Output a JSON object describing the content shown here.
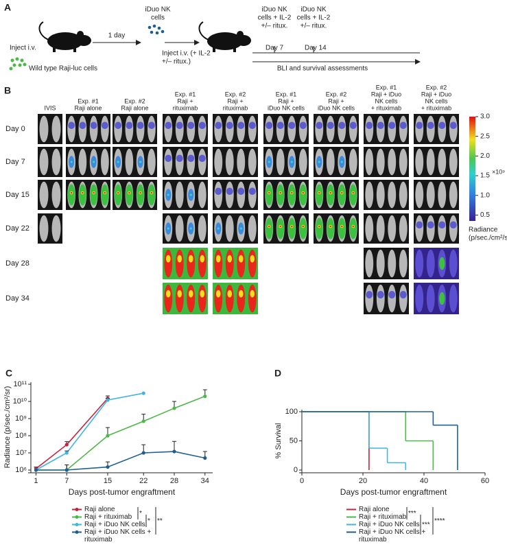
{
  "panel_a": {
    "label": "A",
    "inject_label": "Inject i.v.",
    "cells_label": "Wild type Raji-luc cells",
    "interval_label": "1 day",
    "nk_label": [
      "iDuo NK",
      "cells"
    ],
    "nk_inject_label": [
      "Inject i.v. (+ IL-2",
      "+/– ritux.)"
    ],
    "doses": [
      {
        "label": [
          "iDuo NK",
          "cells + IL-2",
          "+/– ritux."
        ],
        "day": "Day 7"
      },
      {
        "label": [
          "iDuo NK",
          "cells + IL-2",
          "+/– ritux."
        ],
        "day": "Day 14"
      }
    ],
    "assessment_label": "BLI and survival assessments"
  },
  "panel_b": {
    "label": "B",
    "columns": [
      [
        "IVIS"
      ],
      [
        "Exp. #1",
        "Raji alone"
      ],
      [
        "Exp. #2",
        "Raji alone"
      ],
      [
        "Exp. #1",
        "Raji +",
        "rituximab"
      ],
      [
        "Exp. #2",
        "Raji +",
        "rituximab"
      ],
      [
        "Exp. #1",
        "Raji +",
        "iDuo NK cells"
      ],
      [
        "Exp. #2",
        "Raji +",
        "iDuo NK cells"
      ],
      [
        "Exp. #1",
        "Raji + iDuo",
        "NK cells",
        "+ rituximab"
      ],
      [
        "Exp. #2",
        "Raji + iDuo",
        "NK cells",
        "+ rituximab"
      ]
    ],
    "rows": [
      "Day 0",
      "Day 7",
      "Day 15",
      "Day 22",
      "Day 28",
      "Day 34"
    ],
    "colorbar": {
      "range": [
        0.35,
        3
      ],
      "ticks": [
        {
          "value": 3,
          "label": "3.0"
        },
        2.5,
        {
          "value": 2,
          "label": "2.0"
        },
        1.5,
        {
          "value": 1,
          "label": "1.0"
        },
        0.5
      ],
      "exponent_label": "×10⁹",
      "title": [
        "Radiance",
        "(p/sec./cm²/sr)"
      ]
    }
  },
  "chart_data": [
    {
      "type": "line",
      "label": "C",
      "x_label": "Days post-tumor engraftment",
      "y_label": "Radiance (p/sec./cm²/sr)",
      "log_y": true,
      "x": [
        1,
        7,
        15,
        22,
        28,
        34
      ],
      "xlim": [
        0,
        35.5
      ],
      "xticks": [
        1,
        7,
        15,
        22,
        28,
        34
      ],
      "ylim": [
        1000000,
        100000000000
      ],
      "yticks": [
        {
          "value": 1000000,
          "label": "10⁶"
        },
        {
          "value": 10000000,
          "label": "10⁷"
        },
        {
          "value": 100000000,
          "label": "10⁸"
        },
        {
          "value": 1000000000,
          "label": "10⁹"
        },
        {
          "value": 10000000000,
          "label": "10¹⁰"
        },
        {
          "value": 100000000000,
          "label": "10¹¹"
        }
      ],
      "series": [
        {
          "name": "Raji alone",
          "color": "#c8203c",
          "values": [
            1200000,
            30000000,
            15000000000,
            null,
            null,
            null
          ],
          "errors": [
            300000,
            15000000,
            6000000000,
            null,
            null,
            null
          ]
        },
        {
          "name": "Raji + rituximab",
          "color": "#4cb848",
          "values": [
            1000000,
            1000000,
            100000000,
            700000000,
            4000000000,
            20000000000
          ],
          "errors": [
            null,
            1000000,
            200000000,
            1100000000,
            6000000000,
            28000000000
          ]
        },
        {
          "name": "Raji + iDuo NK cells",
          "color": "#3fb5e5",
          "values": [
            1000000,
            10000000,
            12000000000,
            30000000000,
            null,
            null
          ],
          "errors": [
            null,
            3000000,
            3000000000,
            null,
            null,
            null
          ]
        },
        {
          "name": "Raji + iDuo NK cells + rituximab",
          "color": "#1f5f8f",
          "values": [
            1000000,
            1000000,
            1500000,
            10000000,
            12000000,
            5000000
          ],
          "errors": [
            null,
            1000000,
            1500000,
            20000000,
            35000000,
            7000000
          ]
        }
      ],
      "annotations": [
        "*",
        "*",
        "**"
      ]
    },
    {
      "type": "step",
      "label": "D",
      "x_label": "Days post-tumor engraftment",
      "y_label": "% Survival",
      "xlim": [
        0,
        60
      ],
      "xticks": [
        0,
        20,
        40,
        60
      ],
      "ylim": [
        0,
        100
      ],
      "yticks": [
        0,
        50,
        100
      ],
      "series": [
        {
          "name": "Raji alone",
          "color": "#c8203c",
          "x": [
            0,
            22
          ],
          "values": [
            100,
            0
          ]
        },
        {
          "name": "Raji + rituximab",
          "color": "#4cb848",
          "x": [
            0,
            34,
            43
          ],
          "values": [
            100,
            50,
            0
          ]
        },
        {
          "name": "Raji + iDuo NK cells",
          "color": "#3fb5e5",
          "x": [
            0,
            22,
            28,
            34
          ],
          "values": [
            100,
            37.5,
            12.5,
            0
          ]
        },
        {
          "name": "Raji + iDuo NK cells + rituximab",
          "color": "#1f5f8f",
          "x": [
            0,
            43,
            51
          ],
          "values": [
            100,
            77,
            0
          ]
        }
      ],
      "annotations": [
        "***",
        "***",
        "****"
      ]
    }
  ]
}
